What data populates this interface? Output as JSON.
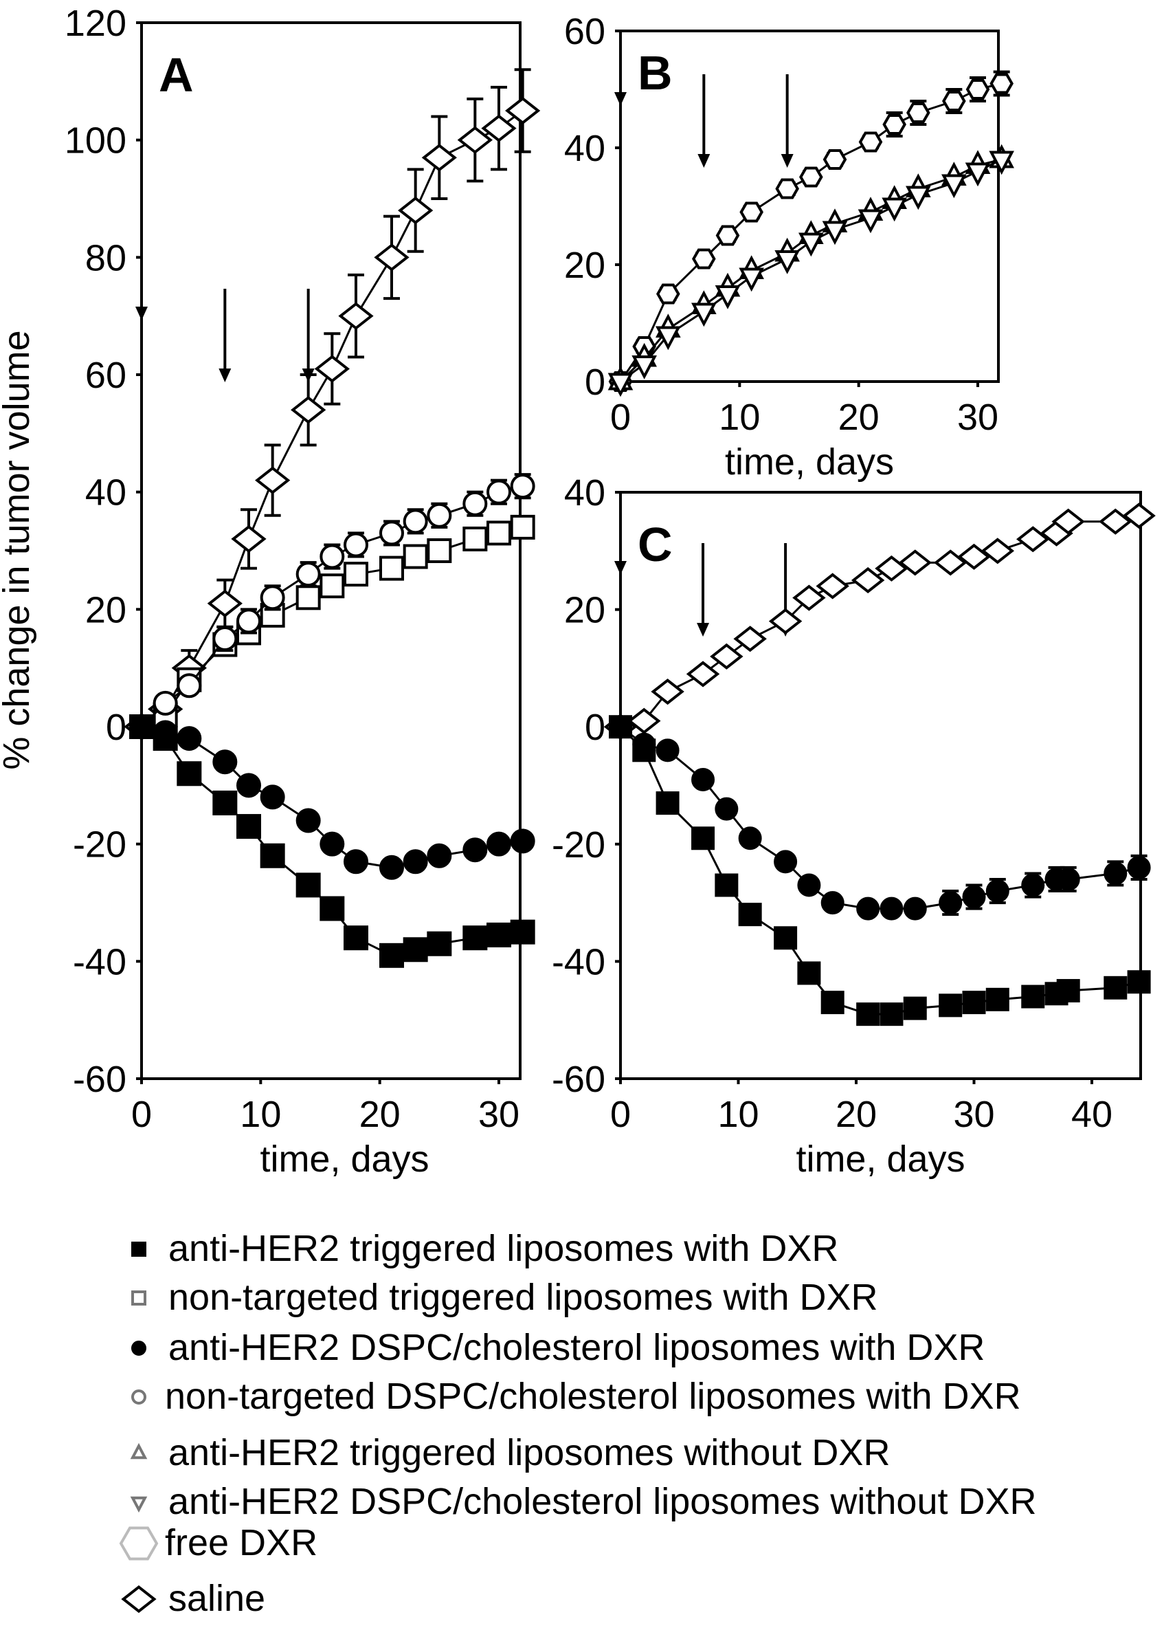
{
  "ylabel": "% change in tumor volume",
  "legend": [
    {
      "marker": "filled-square",
      "label": "anti-HER2 triggered liposomes with DXR"
    },
    {
      "marker": "open-square",
      "label": "non-targeted triggered liposomes with DXR"
    },
    {
      "marker": "filled-circle",
      "label": "anti-HER2 DSPC/cholesterol liposomes with DXR"
    },
    {
      "marker": "open-circle",
      "label": "non-targeted DSPC/cholesterol liposomes with DXR"
    },
    {
      "marker": "open-triangle-up",
      "label": "anti-HER2 triggered liposomes without DXR"
    },
    {
      "marker": "open-triangle-down",
      "label": "anti-HER2 DSPC/cholesterol liposomes without DXR"
    },
    {
      "marker": "open-hexagon",
      "label": "free DXR"
    },
    {
      "marker": "open-diamond",
      "label": "saline"
    }
  ],
  "chart_data": [
    {
      "type": "line",
      "panel": "A",
      "xlabel": "time, days",
      "ylabel": "% change in tumor volume",
      "xlim": [
        0,
        32
      ],
      "ylim": [
        -60,
        120
      ],
      "xticks": [
        "0",
        "10",
        "20",
        "30"
      ],
      "yticks": [
        "-60",
        "-40",
        "-20",
        "0",
        "20",
        "40",
        "60",
        "80",
        "100",
        "120"
      ],
      "dosing_arrows_days": [
        0,
        7,
        14
      ],
      "x": [
        0,
        2,
        4,
        7,
        9,
        11,
        14,
        16,
        18,
        21,
        23,
        25,
        28,
        30,
        32
      ],
      "series": [
        {
          "marker": "open-diamond",
          "values": [
            0,
            3,
            10,
            21,
            32,
            42,
            54,
            61,
            70,
            80,
            88,
            97,
            100,
            102,
            105
          ],
          "error": [
            1,
            2,
            3,
            4,
            5,
            6,
            6,
            6,
            7,
            7,
            7,
            7,
            7,
            7,
            7
          ]
        },
        {
          "marker": "open-square",
          "values": [
            0,
            2,
            8,
            14,
            16,
            19,
            22,
            24,
            26,
            27,
            29,
            30,
            32,
            33,
            34
          ]
        },
        {
          "marker": "open-circle",
          "values": [
            0,
            4,
            7,
            15,
            18,
            22,
            26,
            29,
            31,
            33,
            35,
            36,
            38,
            40,
            41
          ],
          "error": [
            0,
            1,
            1,
            2,
            2,
            2,
            2,
            2,
            2,
            2,
            2,
            2,
            2,
            2,
            2
          ]
        },
        {
          "marker": "filled-square",
          "values": [
            0,
            -2,
            -8,
            -13,
            -17,
            -22,
            -27,
            -31,
            -36,
            -39,
            -38,
            -37,
            -36,
            -35.5,
            -35
          ]
        },
        {
          "marker": "filled-circle",
          "values": [
            0,
            -1,
            -2,
            -6,
            -10,
            -12,
            -16,
            -20,
            -23,
            -24,
            -23,
            -22,
            -21,
            -20,
            -19.5
          ]
        }
      ]
    },
    {
      "type": "line",
      "panel": "B",
      "xlabel": "time, days",
      "xlim": [
        0,
        32
      ],
      "ylim": [
        0,
        60
      ],
      "xticks": [
        "0",
        "10",
        "20",
        "30"
      ],
      "yticks": [
        "0",
        "20",
        "40",
        "60"
      ],
      "dosing_arrows_days": [
        0,
        7,
        14
      ],
      "x": [
        0,
        2,
        4,
        7,
        9,
        11,
        14,
        16,
        18,
        21,
        23,
        25,
        28,
        30,
        32
      ],
      "series": [
        {
          "marker": "open-hexagon",
          "values": [
            0,
            6,
            15,
            21,
            25,
            29,
            33,
            35,
            38,
            41,
            44,
            46,
            48,
            50,
            51
          ],
          "error": [
            0,
            1,
            1,
            1,
            1,
            1,
            1,
            1,
            1,
            1,
            2,
            2,
            2,
            2,
            2
          ]
        },
        {
          "marker": "open-triangle-up",
          "values": [
            0,
            4,
            9,
            13,
            16,
            19,
            22,
            25,
            27,
            29,
            31,
            33,
            35,
            37,
            38
          ]
        },
        {
          "marker": "open-triangle-down",
          "values": [
            0,
            3,
            8,
            12,
            15,
            18,
            21,
            24,
            26,
            28,
            30,
            32,
            34,
            36,
            38
          ]
        }
      ]
    },
    {
      "type": "line",
      "panel": "C",
      "xlabel": "time, days",
      "xlim": [
        0,
        44
      ],
      "ylim": [
        -60,
        40
      ],
      "xticks": [
        "0",
        "10",
        "20",
        "30",
        "40"
      ],
      "yticks": [
        "-60",
        "-40",
        "-20",
        "0",
        "20",
        "40"
      ],
      "dosing_arrows_days": [
        0,
        7,
        14
      ],
      "x": [
        0,
        2,
        4,
        7,
        9,
        11,
        14,
        16,
        18,
        21,
        23,
        25,
        28,
        30,
        32,
        35,
        37,
        38,
        42,
        44
      ],
      "series": [
        {
          "marker": "open-diamond",
          "values": [
            0,
            1,
            6,
            9,
            12,
            15,
            18,
            22,
            24,
            25,
            27,
            28,
            28,
            29,
            30,
            32,
            33,
            35,
            35,
            36
          ]
        },
        {
          "marker": "filled-circle",
          "values": [
            0,
            -3,
            -4,
            -9,
            -14,
            -19,
            -23,
            -27,
            -30,
            -31,
            -31,
            -31,
            -30,
            -29,
            -28,
            -27,
            -26,
            -26,
            -25,
            -24
          ],
          "error": [
            0,
            0,
            0,
            0,
            0,
            0,
            0,
            0,
            0,
            0,
            0,
            0,
            2,
            2,
            2,
            2,
            2,
            2,
            2,
            2
          ]
        },
        {
          "marker": "filled-square",
          "values": [
            0,
            -4,
            -13,
            -19,
            -27,
            -32,
            -36,
            -42,
            -47,
            -49,
            -49,
            -48,
            -47.5,
            -47,
            -46.5,
            -46,
            -45.5,
            -45,
            -44.5,
            -43.5
          ]
        }
      ]
    }
  ]
}
